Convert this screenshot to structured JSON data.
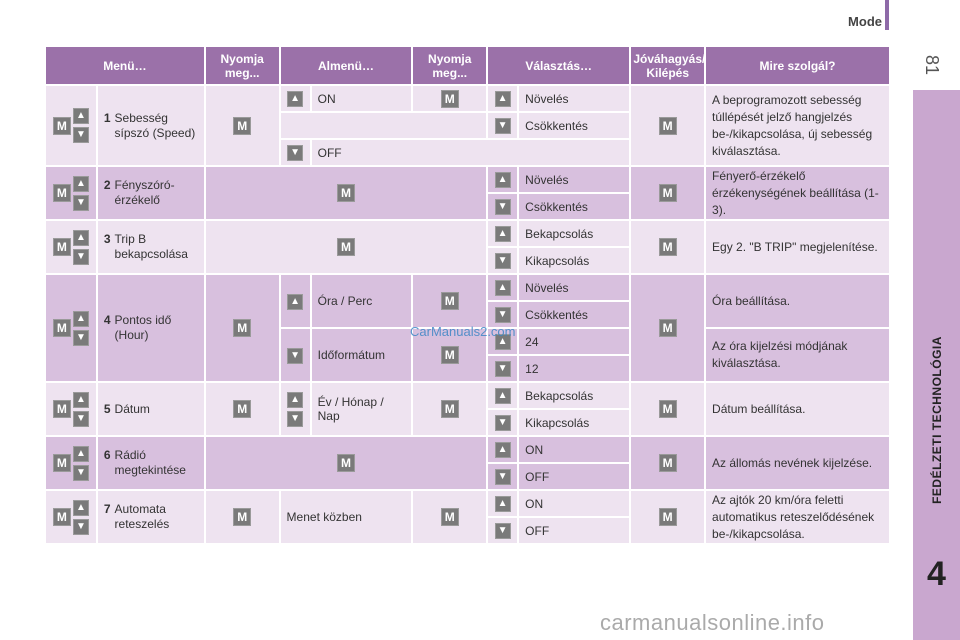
{
  "header": {
    "mode_label": "Mode",
    "page_number": "81"
  },
  "side": {
    "section_title": "FEDÉLZETI TECHNOLÓGIA",
    "chapter": "4"
  },
  "watermarks": {
    "mid": "CarManuals2.com",
    "bottom": "carmanualsonline.info"
  },
  "icons": {
    "m": "M",
    "up": "▲",
    "down": "▼"
  },
  "table": {
    "headers": {
      "menu": "Menü…",
      "press1": "Nyomja meg...",
      "submenu": "Almenü…",
      "press2": "Nyomja meg...",
      "choose": "Választás…",
      "confirm": "Jóváhagyás/ Kilépés",
      "purpose": "Mire szolgál?"
    },
    "groups": [
      {
        "num": "1",
        "menu": "Sebesség sípszó (Speed)",
        "sub1": "ON",
        "sub2": "OFF",
        "choices": [
          "Növelés",
          "Csökkentés"
        ],
        "desc": "A beprogramozott sebesség túllépését jelző hangjelzés be-/kikapcsolása, új sebesség kiválasztása."
      },
      {
        "num": "2",
        "menu": "Fényszóró-érzékelő",
        "choices": [
          "Növelés",
          "Csökkentés"
        ],
        "desc": "Fényerő-érzékelő érzékenységének beállítása (1-3)."
      },
      {
        "num": "3",
        "menu": "Trip B bekapcsolása",
        "choices": [
          "Bekapcsolás",
          "Kikapcsolás"
        ],
        "desc": "Egy 2. \"B TRIP\" megjelenítése."
      },
      {
        "num": "4",
        "menu": "Pontos idő (Hour)",
        "sub1": "Óra / Perc",
        "sub2": "Időformátum",
        "choices": [
          "Növelés",
          "Csökkentés",
          "24",
          "12"
        ],
        "desc": "Óra beállítása.",
        "desc2": "Az óra kijelzési módjának kiválasztása."
      },
      {
        "num": "5",
        "menu": "Dátum",
        "sub1": "Év / Hónap / Nap",
        "choices": [
          "Bekapcsolás",
          "Kikapcsolás"
        ],
        "desc": "Dátum beállítása."
      },
      {
        "num": "6",
        "menu": "Rádió megtekintése",
        "choices": [
          "ON",
          "OFF"
        ],
        "desc": "Az állomás nevének kijelzése."
      },
      {
        "num": "7",
        "menu": "Automata reteszelés",
        "sub1": "Menet közben",
        "choices": [
          "ON",
          "OFF"
        ],
        "desc": "Az ajtók 20 km/óra feletti automatikus reteszelődésének be-/kikapcsolása."
      }
    ]
  }
}
